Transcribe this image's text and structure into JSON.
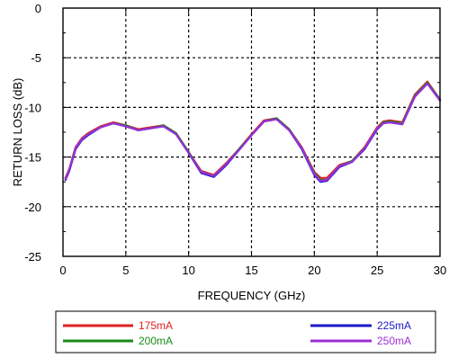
{
  "chart_data": {
    "type": "line",
    "title": "",
    "xlabel": "FREQUENCY (GHz)",
    "ylabel": "RETURN LOSS (dB)",
    "xlim": [
      0,
      30
    ],
    "ylim": [
      -25,
      0
    ],
    "xticks": [
      0,
      5,
      10,
      15,
      20,
      25,
      30
    ],
    "yticks": [
      0,
      -5,
      -10,
      -15,
      -20,
      -25
    ],
    "grid": true,
    "legend_position": "bottom",
    "series": [
      {
        "name": "175mA",
        "color": "#e02020",
        "x": [
          0.2,
          0.5,
          1,
          1.5,
          2,
          3,
          4,
          5,
          6,
          7,
          8,
          9,
          10,
          11,
          12,
          13,
          14,
          15,
          16,
          17,
          18,
          19,
          20,
          20.5,
          21,
          22,
          23,
          24,
          25,
          25.5,
          26,
          27,
          28,
          29,
          30
        ],
        "y": [
          -17.1,
          -16.2,
          -14.0,
          -13.1,
          -12.6,
          -11.9,
          -11.5,
          -11.8,
          -12.2,
          -12.0,
          -11.8,
          -12.6,
          -14.5,
          -16.4,
          -16.8,
          -15.6,
          -14.2,
          -12.7,
          -11.3,
          -11.1,
          -12.2,
          -14.0,
          -16.5,
          -17.1,
          -17.1,
          -15.8,
          -15.4,
          -14.0,
          -12.0,
          -11.4,
          -11.3,
          -11.5,
          -8.7,
          -7.4,
          -9.2
        ]
      },
      {
        "name": "200mA",
        "color": "#1a8a1a",
        "x": [
          0.2,
          0.5,
          1,
          1.5,
          2,
          3,
          4,
          5,
          6,
          7,
          8,
          9,
          10,
          11,
          12,
          13,
          14,
          15,
          16,
          17,
          18,
          19,
          20,
          20.5,
          21,
          22,
          23,
          24,
          25,
          25.5,
          26,
          27,
          28,
          29,
          30
        ],
        "y": [
          -17.2,
          -16.3,
          -14.1,
          -13.2,
          -12.7,
          -12.0,
          -11.6,
          -11.8,
          -12.3,
          -12.1,
          -11.8,
          -12.6,
          -14.5,
          -16.5,
          -16.9,
          -15.7,
          -14.2,
          -12.8,
          -11.4,
          -11.1,
          -12.2,
          -14.1,
          -16.6,
          -17.3,
          -17.3,
          -15.9,
          -15.4,
          -14.1,
          -12.1,
          -11.5,
          -11.4,
          -11.6,
          -8.8,
          -7.5,
          -9.2
        ]
      },
      {
        "name": "225mA",
        "color": "#1a1ac8",
        "x": [
          0.2,
          0.5,
          1,
          1.5,
          2,
          3,
          4,
          5,
          6,
          7,
          8,
          9,
          10,
          11,
          12,
          13,
          14,
          15,
          16,
          17,
          18,
          19,
          20,
          20.5,
          21,
          22,
          23,
          24,
          25,
          25.5,
          26,
          27,
          28,
          29,
          30
        ],
        "y": [
          -17.3,
          -16.4,
          -14.2,
          -13.3,
          -12.8,
          -12.0,
          -11.6,
          -11.9,
          -12.3,
          -12.1,
          -11.9,
          -12.7,
          -14.6,
          -16.6,
          -17.0,
          -15.8,
          -14.3,
          -12.8,
          -11.4,
          -11.2,
          -12.3,
          -14.2,
          -16.8,
          -17.5,
          -17.4,
          -16.0,
          -15.5,
          -14.2,
          -12.2,
          -11.6,
          -11.5,
          -11.7,
          -8.9,
          -7.6,
          -9.3
        ]
      },
      {
        "name": "250mA",
        "color": "#9b2fd6",
        "x": [
          0.2,
          0.5,
          1,
          1.5,
          2,
          3,
          4,
          5,
          6,
          7,
          8,
          9,
          10,
          11,
          12,
          13,
          14,
          15,
          16,
          17,
          18,
          19,
          20,
          20.5,
          21,
          22,
          23,
          24,
          25,
          25.5,
          26,
          27,
          28,
          29,
          30
        ],
        "y": [
          -17.2,
          -16.3,
          -14.1,
          -13.2,
          -12.7,
          -12.0,
          -11.6,
          -11.9,
          -12.3,
          -12.1,
          -11.9,
          -12.7,
          -14.6,
          -16.5,
          -16.9,
          -15.7,
          -14.3,
          -12.8,
          -11.4,
          -11.2,
          -12.3,
          -14.1,
          -16.7,
          -17.4,
          -17.3,
          -15.9,
          -15.5,
          -14.1,
          -12.1,
          -11.6,
          -11.5,
          -11.7,
          -8.9,
          -7.6,
          -9.3
        ]
      }
    ]
  }
}
